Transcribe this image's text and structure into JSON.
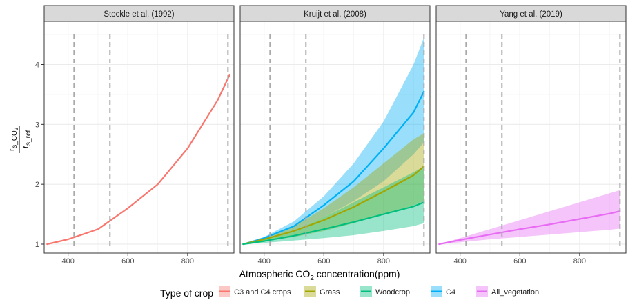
{
  "chart_data": {
    "type": "line",
    "x_ticks": [
      400,
      600,
      800
    ],
    "y_ticks": [
      1,
      2,
      3,
      4
    ],
    "xlim": [
      320,
      955
    ],
    "ylim": [
      0.85,
      4.72
    ],
    "grid": true,
    "xlabel_pre": "Atmospheric CO",
    "xlabel_sub": "2",
    "xlabel_post": " concentration(ppm)",
    "ylabel": {
      "num_main": "r",
      "num_sub": "s_CO",
      "num_subsub": "2",
      "den_main": "r",
      "den_sub": "s_ref"
    },
    "reference_lines": [
      420,
      540,
      935
    ],
    "legend": {
      "position": "bottom",
      "title": "Type of crop",
      "items": [
        {
          "label": "C3 and C4 crops",
          "color": "#F8766D"
        },
        {
          "label": "Grass",
          "color": "#A3A500"
        },
        {
          "label": "Woodcrop",
          "color": "#00BF7D"
        },
        {
          "label": "C4",
          "color": "#00B0F6"
        },
        {
          "label": "All_vegetation",
          "color": "#E76BF3"
        }
      ]
    },
    "panels": [
      {
        "title": "Stockle et al. (1992)",
        "series": [
          {
            "name": "C3 and C4 crops",
            "color": "#F8766D",
            "x": [
              330,
              400,
              500,
              600,
              700,
              800,
              900,
              940
            ],
            "y": [
              1.0,
              1.08,
              1.25,
              1.6,
              2.0,
              2.6,
              3.4,
              3.82
            ]
          }
        ]
      },
      {
        "title": "Kruijt et al. (2008)",
        "series": [
          {
            "name": "C4",
            "color": "#00B0F6",
            "x": [
              330,
              400,
              500,
              600,
              700,
              800,
              900,
              935
            ],
            "y": [
              1.0,
              1.1,
              1.3,
              1.65,
              2.05,
              2.6,
              3.2,
              3.55
            ],
            "lower": [
              1.0,
              1.08,
              1.22,
              1.45,
              1.72,
              2.05,
              2.5,
              2.7
            ],
            "upper": [
              1.0,
              1.12,
              1.38,
              1.8,
              2.35,
              3.05,
              4.0,
              4.45
            ]
          },
          {
            "name": "Grass",
            "color": "#A3A500",
            "x": [
              330,
              400,
              500,
              600,
              700,
              800,
              900,
              935
            ],
            "y": [
              1.0,
              1.08,
              1.22,
              1.4,
              1.62,
              1.88,
              2.15,
              2.3
            ],
            "lower": [
              1.0,
              1.05,
              1.12,
              1.22,
              1.35,
              1.5,
              1.65,
              1.72
            ],
            "upper": [
              1.0,
              1.1,
              1.3,
              1.6,
              1.95,
              2.35,
              2.75,
              2.85
            ]
          },
          {
            "name": "Woodcrop",
            "color": "#00BF7D",
            "x": [
              330,
              400,
              500,
              600,
              700,
              800,
              900,
              935
            ],
            "y": [
              1.0,
              1.05,
              1.14,
              1.25,
              1.37,
              1.5,
              1.63,
              1.7
            ],
            "lower": [
              1.0,
              1.02,
              1.06,
              1.1,
              1.15,
              1.22,
              1.3,
              1.35
            ],
            "upper": [
              1.0,
              1.07,
              1.22,
              1.45,
              1.7,
              1.95,
              2.2,
              2.3
            ]
          }
        ]
      },
      {
        "title": "Yang et al. (2019)",
        "series": [
          {
            "name": "All_vegetation",
            "color": "#E76BF3",
            "x": [
              330,
              400,
              500,
              600,
              700,
              800,
              900,
              935
            ],
            "y": [
              1.0,
              1.07,
              1.16,
              1.25,
              1.33,
              1.42,
              1.51,
              1.55
            ],
            "lower": [
              1.0,
              1.03,
              1.08,
              1.12,
              1.16,
              1.2,
              1.24,
              1.26
            ],
            "upper": [
              1.0,
              1.1,
              1.25,
              1.4,
              1.55,
              1.7,
              1.85,
              1.9
            ]
          }
        ]
      }
    ]
  }
}
